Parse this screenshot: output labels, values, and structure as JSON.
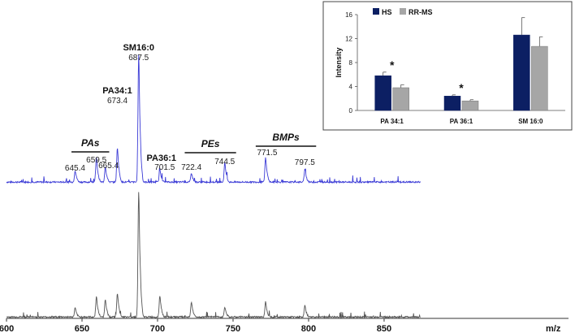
{
  "chart_data": [
    {
      "type": "line",
      "panel": "top-spectrum",
      "color": "#3b3bd6",
      "xlabel": "m/z",
      "xlim": [
        600,
        875
      ],
      "xticks": [
        600,
        650,
        700,
        750,
        800,
        850
      ],
      "peaks": [
        {
          "mz": 645.4,
          "intensity": 0.09,
          "label": "645.4"
        },
        {
          "mz": 659.5,
          "intensity": 0.19,
          "label": "659.5"
        },
        {
          "mz": 665.4,
          "intensity": 0.12,
          "label": "665.4"
        },
        {
          "mz": 673.4,
          "intensity": 0.27,
          "label": "673.4",
          "annotation": "PA34:1"
        },
        {
          "mz": 687.5,
          "intensity": 1.0,
          "label": "687.5",
          "annotation": "SM16:0"
        },
        {
          "mz": 701.5,
          "intensity": 0.1,
          "label": "701.5",
          "annotation": "PA36:1"
        },
        {
          "mz": 722.4,
          "intensity": 0.07,
          "label": "722.4"
        },
        {
          "mz": 744.5,
          "intensity": 0.15,
          "label": "744.5"
        },
        {
          "mz": 771.5,
          "intensity": 0.19,
          "label": "771.5"
        },
        {
          "mz": 797.5,
          "intensity": 0.1,
          "label": "797.5"
        }
      ],
      "groups": [
        {
          "label": "PAs",
          "mz_from": 643,
          "mz_to": 668
        },
        {
          "label": "PEs",
          "mz_from": 718,
          "mz_to": 752
        },
        {
          "label": "BMPs",
          "mz_from": 765,
          "mz_to": 805
        }
      ]
    },
    {
      "type": "line",
      "panel": "bottom-spectrum",
      "color": "#555555",
      "xlabel": "m/z",
      "xlim": [
        600,
        875
      ],
      "peaks": [
        {
          "mz": 645.4,
          "intensity": 0.07
        },
        {
          "mz": 659.5,
          "intensity": 0.16
        },
        {
          "mz": 665.4,
          "intensity": 0.14
        },
        {
          "mz": 673.4,
          "intensity": 0.19
        },
        {
          "mz": 687.5,
          "intensity": 1.0
        },
        {
          "mz": 701.5,
          "intensity": 0.17
        },
        {
          "mz": 722.4,
          "intensity": 0.12
        },
        {
          "mz": 744.5,
          "intensity": 0.08
        },
        {
          "mz": 771.5,
          "intensity": 0.12
        },
        {
          "mz": 797.5,
          "intensity": 0.09
        }
      ]
    },
    {
      "type": "bar",
      "panel": "inset",
      "categories": [
        "PA 34:1",
        "PA 36:1",
        "SM 16:0"
      ],
      "series": [
        {
          "name": "HS",
          "color": "#0c1f63",
          "values": [
            5.8,
            2.4,
            12.6
          ],
          "errors": [
            0.6,
            0.2,
            2.9
          ]
        },
        {
          "name": "RR-MS",
          "color": "#a6a6a6",
          "values": [
            3.8,
            1.6,
            10.7
          ],
          "errors": [
            0.5,
            0.2,
            1.6
          ]
        }
      ],
      "ylabel": "Intensity",
      "ylim": [
        0,
        16
      ],
      "yticks": [
        0,
        4,
        8,
        12,
        16
      ],
      "significance": [
        "*",
        "*",
        ""
      ],
      "legend_position": "top-left"
    }
  ]
}
